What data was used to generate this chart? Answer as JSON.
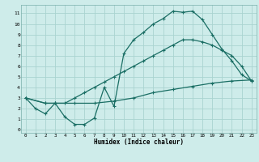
{
  "xlabel": "Humidex (Indice chaleur)",
  "bg_color": "#ceecea",
  "grid_color": "#aad4d0",
  "line_color": "#1a6e64",
  "xlim": [
    -0.5,
    23.5
  ],
  "ylim": [
    -0.3,
    11.8
  ],
  "xticks": [
    0,
    1,
    2,
    3,
    4,
    5,
    6,
    7,
    8,
    9,
    10,
    11,
    12,
    13,
    14,
    15,
    16,
    17,
    18,
    19,
    20,
    21,
    22,
    23
  ],
  "yticks": [
    0,
    1,
    2,
    3,
    4,
    5,
    6,
    7,
    8,
    9,
    10,
    11
  ],
  "line1_x": [
    0,
    1,
    2,
    3,
    4,
    5,
    6,
    7,
    8,
    9,
    10,
    11,
    12,
    13,
    14,
    15,
    16,
    17,
    18,
    19,
    20,
    21,
    22,
    23
  ],
  "line1_y": [
    3.0,
    2.0,
    1.5,
    2.5,
    1.2,
    0.5,
    0.5,
    1.1,
    4.0,
    2.2,
    7.2,
    8.5,
    9.2,
    10.0,
    10.5,
    11.2,
    11.1,
    11.2,
    10.4,
    9.0,
    7.6,
    6.5,
    5.2,
    4.6
  ],
  "line2_x": [
    0,
    2,
    3,
    4,
    5,
    6,
    7,
    8,
    9,
    10,
    11,
    12,
    13,
    14,
    15,
    16,
    17,
    18,
    19,
    20,
    21,
    22,
    23
  ],
  "line2_y": [
    3.0,
    2.5,
    2.5,
    2.5,
    3.0,
    3.5,
    4.0,
    4.5,
    5.0,
    5.5,
    6.0,
    6.5,
    7.0,
    7.5,
    8.0,
    8.5,
    8.5,
    8.3,
    8.0,
    7.5,
    7.0,
    6.0,
    4.6
  ],
  "line3_x": [
    0,
    2,
    3,
    5,
    7,
    9,
    11,
    13,
    15,
    17,
    19,
    21,
    23
  ],
  "line3_y": [
    3.0,
    2.5,
    2.5,
    2.5,
    2.5,
    2.7,
    3.0,
    3.5,
    3.8,
    4.1,
    4.4,
    4.6,
    4.7
  ]
}
